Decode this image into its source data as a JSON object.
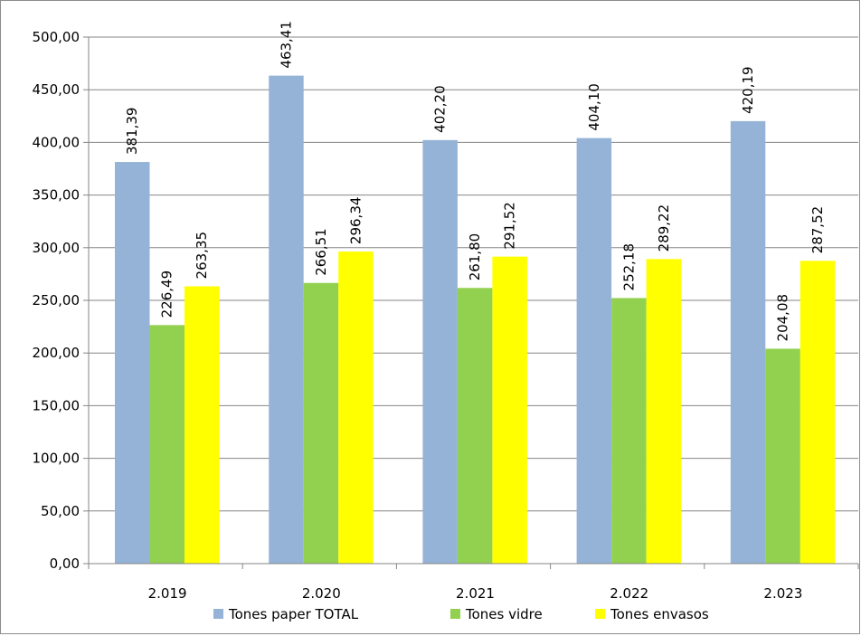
{
  "chart_data": {
    "type": "bar",
    "categories": [
      "2.019",
      "2.020",
      "2.021",
      "2.022",
      "2.023"
    ],
    "series": [
      {
        "name": "Tones paper TOTAL",
        "color": "#95b3d7",
        "values": [
          381.39,
          463.41,
          402.2,
          404.1,
          420.19
        ],
        "labels": [
          "381,39",
          "463,41",
          "402,20",
          "404,10",
          "420,19"
        ]
      },
      {
        "name": "Tones vidre",
        "color": "#92d050",
        "values": [
          226.49,
          266.51,
          261.8,
          252.18,
          204.08
        ],
        "labels": [
          "226,49",
          "266,51",
          "261,80",
          "252,18",
          "204,08"
        ]
      },
      {
        "name": "Tones envasos",
        "color": "#ffff00",
        "values": [
          263.35,
          296.34,
          291.52,
          289.22,
          287.52
        ],
        "labels": [
          "263,35",
          "296,34",
          "291,52",
          "289,22",
          "287,52"
        ]
      }
    ],
    "y_ticks": [
      "0,00",
      "50,00",
      "100,00",
      "150,00",
      "200,00",
      "250,00",
      "300,00",
      "350,00",
      "400,00",
      "450,00",
      "500,00"
    ],
    "ylim": [
      0,
      500
    ],
    "grid": true,
    "legend_position": "bottom",
    "title": "",
    "xlabel": "",
    "ylabel": ""
  }
}
